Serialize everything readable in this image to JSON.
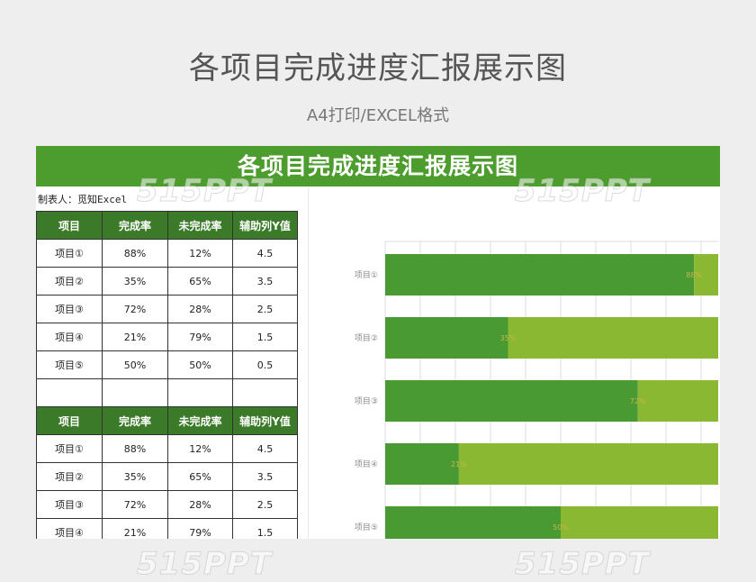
{
  "page": {
    "title": "各项目完成进度汇报展示图",
    "subtitle": "A4打印/EXCEL格式"
  },
  "sheet": {
    "banner": "各项目完成进度汇报展示图",
    "maker": "制表人：觅知Excel",
    "headers": [
      "项目",
      "完成率",
      "未完成率",
      "辅助列Y值"
    ],
    "table1": [
      [
        "项目①",
        "88%",
        "12%",
        "4.5"
      ],
      [
        "项目②",
        "35%",
        "65%",
        "3.5"
      ],
      [
        "项目③",
        "72%",
        "28%",
        "2.5"
      ],
      [
        "项目④",
        "21%",
        "79%",
        "1.5"
      ],
      [
        "项目⑤",
        "50%",
        "50%",
        "0.5"
      ]
    ],
    "table2": [
      [
        "项目①",
        "88%",
        "12%",
        "4.5"
      ],
      [
        "项目②",
        "35%",
        "65%",
        "3.5"
      ],
      [
        "项目③",
        "72%",
        "28%",
        "2.5"
      ],
      [
        "项目④",
        "21%",
        "79%",
        "1.5"
      ]
    ]
  },
  "watermark": "515PPT",
  "colors": {
    "banner": "#4c9c2e",
    "header": "#3a7a28",
    "completed": "#4a9a34",
    "remaining": "#8ab832",
    "gridline": "#dddddd"
  },
  "chart_data": {
    "type": "bar",
    "orientation": "horizontal",
    "stacked": true,
    "categories": [
      "项目①",
      "项目②",
      "项目③",
      "项目④",
      "项目⑤"
    ],
    "series": [
      {
        "name": "完成率",
        "values": [
          88,
          35,
          72,
          21,
          50
        ]
      },
      {
        "name": "未完成率",
        "values": [
          12,
          65,
          28,
          79,
          50
        ]
      }
    ],
    "data_labels": [
      "88%",
      "35%",
      "72%",
      "21%",
      "50%"
    ],
    "xlim": [
      0,
      100
    ],
    "grid": true,
    "legend": "none"
  }
}
